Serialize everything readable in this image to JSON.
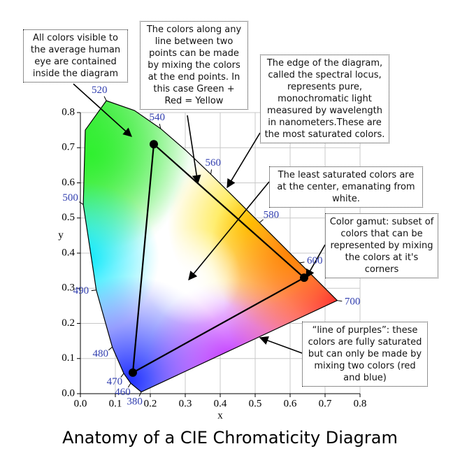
{
  "chart_data": {
    "type": "cie",
    "title": "Anatomy of a CIE Chromaticity Diagram",
    "xlabel": "x",
    "ylabel": "y",
    "xlim": [
      0,
      0.8
    ],
    "ylim": [
      0,
      0.8
    ],
    "xticks": [
      {
        "value": 0,
        "label": "0.0"
      },
      0.1,
      0.2,
      0.3,
      0.4,
      0.5,
      0.6,
      0.7,
      0.8
    ],
    "yticks": [
      {
        "value": 0,
        "label": "0.0"
      },
      0.1,
      0.2,
      0.3,
      0.4,
      0.5,
      0.6,
      0.7,
      0.8
    ],
    "grid": true,
    "locus": {
      "wavelengths": [
        380,
        460,
        470,
        480,
        490,
        500,
        null,
        520,
        null,
        540,
        null,
        560,
        null,
        580,
        null,
        600,
        null,
        null,
        700
      ],
      "x": [
        0.1741,
        0.144,
        0.1241,
        0.0913,
        0.0454,
        0.0082,
        0.0139,
        0.0743,
        0.1547,
        0.2296,
        0.3016,
        0.3731,
        0.4441,
        0.5125,
        0.5752,
        0.627,
        0.6658,
        0.6915,
        0.7347
      ],
      "y": [
        0.005,
        0.0297,
        0.0578,
        0.1327,
        0.295,
        0.5384,
        0.7502,
        0.8338,
        0.8059,
        0.7543,
        0.6923,
        0.6245,
        0.5547,
        0.4866,
        0.4242,
        0.3725,
        0.334,
        0.3083,
        0.2653
      ]
    },
    "gamut": {
      "x": [
        0.64,
        0.21,
        0.15
      ],
      "y": [
        0.33,
        0.71,
        0.06
      ]
    },
    "annotations": [
      "All colors visible to the average human eye are contained inside the diagram",
      "The colors along any line between two points can be made by mixing the colors at the end points. In this case Green + Red = Yellow",
      "The edge of the diagram, called the spectral locus, represents pure, monochromatic light measured by wavelength in nanometers.These are the most saturated colors.",
      "The least saturated colors are at the center, emanating from white.",
      "Color gamut: subset of colors that can be represented by mixing the colors at it's corners",
      "“line of purples”: these colors are fully saturated but can only be made by mixing two colors (red and blue)"
    ]
  }
}
